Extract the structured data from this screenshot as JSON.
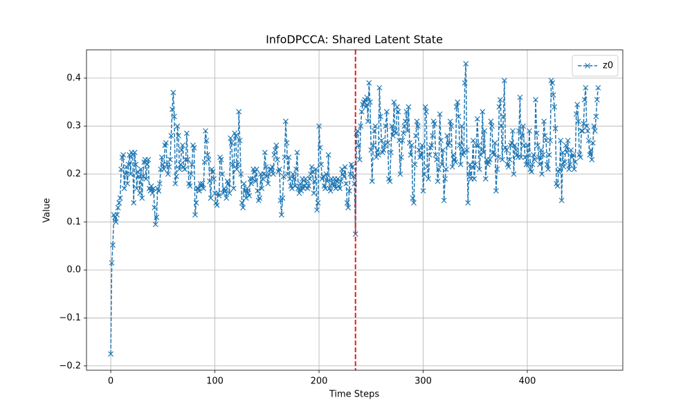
{
  "chart_data": {
    "type": "line",
    "title": "InfoDPCCA: Shared Latent State",
    "xlabel": "Time Steps",
    "ylabel": "Value",
    "x": [
      0,
      1,
      2,
      3,
      4,
      5,
      6,
      7,
      8,
      9,
      10,
      11,
      12,
      13,
      14,
      15,
      16,
      17,
      18,
      19,
      20,
      21,
      22,
      23,
      24,
      25,
      26,
      27,
      28,
      29,
      30,
      31,
      32,
      33,
      34,
      35,
      36,
      37,
      38,
      39,
      40,
      41,
      42,
      43,
      44,
      45,
      46,
      47,
      48,
      49,
      50,
      51,
      52,
      53,
      54,
      55,
      56,
      57,
      58,
      59,
      60,
      61,
      62,
      63,
      64,
      65,
      66,
      67,
      68,
      69,
      70,
      71,
      72,
      73,
      74,
      75,
      76,
      77,
      78,
      79,
      80,
      81,
      82,
      83,
      84,
      85,
      86,
      87,
      88,
      89,
      90,
      91,
      92,
      93,
      94,
      95,
      96,
      97,
      98,
      99,
      100,
      101,
      102,
      103,
      104,
      105,
      106,
      107,
      108,
      109,
      110,
      111,
      112,
      113,
      114,
      115,
      116,
      117,
      118,
      119,
      120,
      121,
      122,
      123,
      124,
      125,
      126,
      127,
      128,
      129,
      130,
      131,
      132,
      133,
      134,
      135,
      136,
      137,
      138,
      139,
      140,
      141,
      142,
      143,
      144,
      145,
      146,
      147,
      148,
      149,
      150,
      151,
      152,
      153,
      154,
      155,
      156,
      157,
      158,
      159,
      160,
      161,
      162,
      163,
      164,
      165,
      166,
      167,
      168,
      169,
      170,
      171,
      172,
      173,
      174,
      175,
      176,
      177,
      178,
      179,
      180,
      181,
      182,
      183,
      184,
      185,
      186,
      187,
      188,
      189,
      190,
      191,
      192,
      193,
      194,
      195,
      196,
      197,
      198,
      199,
      200,
      201,
      202,
      203,
      204,
      205,
      206,
      207,
      208,
      209,
      210,
      211,
      212,
      213,
      214,
      215,
      216,
      217,
      218,
      219,
      220,
      221,
      222,
      223,
      224,
      225,
      226,
      227,
      228,
      229,
      230,
      231,
      232,
      233,
      234,
      235,
      236,
      237,
      238,
      239,
      240,
      241,
      242,
      243,
      244,
      245,
      246,
      247,
      248,
      249,
      250,
      251,
      252,
      253,
      254,
      255,
      256,
      257,
      258,
      259,
      260,
      261,
      262,
      263,
      264,
      265,
      266,
      267,
      268,
      269,
      270,
      271,
      272,
      273,
      274,
      275,
      276,
      277,
      278,
      279,
      280,
      281,
      282,
      283,
      284,
      285,
      286,
      287,
      288,
      289,
      290,
      291,
      292,
      293,
      294,
      295,
      296,
      297,
      298,
      299,
      300,
      301,
      302,
      303,
      304,
      305,
      306,
      307,
      308,
      309,
      310,
      311,
      312,
      313,
      314,
      315,
      316,
      317,
      318,
      319,
      320,
      321,
      322,
      323,
      324,
      325,
      326,
      327,
      328,
      329,
      330,
      331,
      332,
      333,
      334,
      335,
      336,
      337,
      338,
      339,
      340,
      341,
      342,
      343,
      344,
      345,
      346,
      347,
      348,
      349,
      350,
      351,
      352,
      353,
      354,
      355,
      356,
      357,
      358,
      359,
      360,
      361,
      362,
      363,
      364,
      365,
      366,
      367,
      368,
      369,
      370,
      371,
      372,
      373,
      374,
      375,
      376,
      377,
      378,
      379,
      380,
      381,
      382,
      383,
      384,
      385,
      386,
      387,
      388,
      389,
      390,
      391,
      392,
      393,
      394,
      395,
      396,
      397,
      398,
      399,
      400,
      401,
      402,
      403,
      404,
      405,
      406,
      407,
      408,
      409,
      410,
      411,
      412,
      413,
      414,
      415,
      416,
      417,
      418,
      419,
      420,
      421,
      422,
      423,
      424,
      425,
      426,
      427,
      428,
      429,
      430,
      431,
      432,
      433,
      434,
      435,
      436,
      437,
      438,
      439,
      440,
      441,
      442,
      443,
      444,
      445,
      446,
      447,
      448,
      449,
      450,
      451,
      452,
      453,
      454,
      455,
      456,
      457,
      458,
      459,
      460,
      461,
      462,
      463,
      464,
      465,
      466,
      467,
      468
    ],
    "series": [
      {
        "name": "z0",
        "color": "#1f77b4",
        "values": [
          -0.175,
          0.015,
          0.052,
          0.115,
          0.11,
          0.1,
          0.115,
          0.13,
          0.14,
          0.15,
          0.21,
          0.235,
          0.24,
          0.17,
          0.2,
          0.215,
          0.18,
          0.22,
          0.24,
          0.2,
          0.245,
          0.24,
          0.14,
          0.245,
          0.22,
          0.17,
          0.205,
          0.195,
          0.16,
          0.21,
          0.15,
          0.195,
          0.225,
          0.23,
          0.19,
          0.22,
          0.23,
          0.17,
          0.165,
          0.175,
          0.16,
          0.17,
          0.13,
          0.095,
          0.11,
          0.17,
          0.165,
          0.18,
          0.21,
          0.235,
          0.22,
          0.21,
          0.26,
          0.265,
          0.22,
          0.2,
          0.215,
          0.23,
          0.28,
          0.335,
          0.37,
          0.32,
          0.18,
          0.195,
          0.3,
          0.28,
          0.21,
          0.22,
          0.25,
          0.26,
          0.215,
          0.21,
          0.23,
          0.285,
          0.23,
          0.18,
          0.175,
          0.2,
          0.22,
          0.26,
          0.255,
          0.115,
          0.14,
          0.17,
          0.17,
          0.165,
          0.18,
          0.175,
          0.18,
          0.17,
          0.225,
          0.29,
          0.27,
          0.24,
          0.23,
          0.185,
          0.15,
          0.21,
          0.205,
          0.19,
          0.16,
          0.14,
          0.135,
          0.16,
          0.155,
          0.235,
          0.23,
          0.2,
          0.16,
          0.17,
          0.165,
          0.15,
          0.185,
          0.18,
          0.16,
          0.275,
          0.265,
          0.22,
          0.17,
          0.285,
          0.28,
          0.21,
          0.22,
          0.33,
          0.27,
          0.2,
          0.14,
          0.13,
          0.18,
          0.165,
          0.15,
          0.17,
          0.16,
          0.155,
          0.19,
          0.18,
          0.19,
          0.21,
          0.205,
          0.185,
          0.21,
          0.165,
          0.145,
          0.15,
          0.2,
          0.17,
          0.19,
          0.2,
          0.245,
          0.215,
          0.195,
          0.18,
          0.2,
          0.21,
          0.21,
          0.215,
          0.2,
          0.24,
          0.25,
          0.26,
          0.23,
          0.205,
          0.21,
          0.145,
          0.115,
          0.15,
          0.195,
          0.235,
          0.31,
          0.265,
          0.2,
          0.235,
          0.19,
          0.175,
          0.17,
          0.2,
          0.19,
          0.175,
          0.21,
          0.245,
          0.17,
          0.16,
          0.18,
          0.165,
          0.19,
          0.17,
          0.175,
          0.19,
          0.18,
          0.17,
          0.175,
          0.19,
          0.2,
          0.215,
          0.205,
          0.16,
          0.185,
          0.21,
          0.125,
          0.14,
          0.3,
          0.255,
          0.22,
          0.19,
          0.195,
          0.175,
          0.17,
          0.2,
          0.185,
          0.24,
          0.17,
          0.165,
          0.19,
          0.18,
          0.175,
          0.19,
          0.17,
          0.185,
          0.19,
          0.175,
          0.17,
          0.185,
          0.21,
          0.2,
          0.195,
          0.215,
          0.18,
          0.14,
          0.13,
          0.165,
          0.2,
          0.22,
          0.215,
          0.195,
          0.18,
          0.075,
          0.285,
          0.29,
          0.26,
          0.23,
          0.3,
          0.33,
          0.345,
          0.35,
          0.355,
          0.34,
          0.36,
          0.31,
          0.39,
          0.35,
          0.25,
          0.185,
          0.26,
          0.29,
          0.3,
          0.235,
          0.25,
          0.24,
          0.38,
          0.32,
          0.27,
          0.245,
          0.25,
          0.26,
          0.3,
          0.33,
          0.265,
          0.19,
          0.185,
          0.245,
          0.3,
          0.28,
          0.35,
          0.29,
          0.285,
          0.34,
          0.33,
          0.27,
          0.2,
          0.235,
          0.27,
          0.285,
          0.3,
          0.31,
          0.33,
          0.29,
          0.34,
          0.265,
          0.24,
          0.26,
          0.15,
          0.14,
          0.22,
          0.28,
          0.31,
          0.3,
          0.25,
          0.235,
          0.24,
          0.26,
          0.165,
          0.2,
          0.34,
          0.33,
          0.215,
          0.19,
          0.24,
          0.255,
          0.26,
          0.28,
          0.31,
          0.305,
          0.24,
          0.23,
          0.185,
          0.21,
          0.325,
          0.27,
          0.22,
          0.25,
          0.145,
          0.19,
          0.21,
          0.28,
          0.26,
          0.265,
          0.31,
          0.3,
          0.215,
          0.24,
          0.23,
          0.225,
          0.34,
          0.35,
          0.32,
          0.26,
          0.22,
          0.3,
          0.24,
          0.245,
          0.39,
          0.43,
          0.25,
          0.14,
          0.2,
          0.22,
          0.19,
          0.215,
          0.27,
          0.19,
          0.22,
          0.26,
          0.315,
          0.26,
          0.21,
          0.24,
          0.25,
          0.33,
          0.245,
          0.29,
          0.19,
          0.23,
          0.22,
          0.225,
          0.23,
          0.31,
          0.3,
          0.245,
          0.24,
          0.265,
          0.165,
          0.21,
          0.235,
          0.34,
          0.355,
          0.3,
          0.23,
          0.32,
          0.395,
          0.255,
          0.25,
          0.22,
          0.215,
          0.23,
          0.26,
          0.265,
          0.29,
          0.2,
          0.26,
          0.25,
          0.24,
          0.235,
          0.29,
          0.36,
          0.235,
          0.28,
          0.3,
          0.26,
          0.235,
          0.22,
          0.26,
          0.22,
          0.29,
          0.21,
          0.205,
          0.22,
          0.24,
          0.23,
          0.355,
          0.285,
          0.26,
          0.235,
          0.22,
          0.25,
          0.2,
          0.24,
          0.31,
          0.28,
          0.27,
          0.22,
          0.21,
          0.24,
          0.27,
          0.395,
          0.39,
          0.365,
          0.34,
          0.295,
          0.18,
          0.175,
          0.205,
          0.21,
          0.27,
          0.145,
          0.245,
          0.215,
          0.225,
          0.26,
          0.245,
          0.27,
          0.21,
          0.22,
          0.25,
          0.235,
          0.24,
          0.21,
          0.225,
          0.325,
          0.345,
          0.31,
          0.24,
          0.235,
          0.29,
          0.29,
          0.305,
          0.355,
          0.38,
          0.3,
          0.29,
          0.27,
          0.24,
          0.25,
          0.23,
          0.265,
          0.3,
          0.29,
          0.32,
          0.355,
          0.38
        ]
      }
    ],
    "xlim": [
      -23.3,
      491.7
    ],
    "ylim": [
      -0.209,
      0.459
    ],
    "xticks": [
      0,
      100,
      200,
      300,
      400
    ],
    "yticks": [
      {
        "value": -0.2,
        "label": "−0.2"
      },
      {
        "value": -0.1,
        "label": "−0.1"
      },
      {
        "value": 0,
        "label": "0.0"
      },
      0.1,
      0.2,
      0.3,
      0.4
    ],
    "vlines": [
      {
        "x": 235,
        "color": "#e41a1c"
      }
    ],
    "grid": true,
    "legend": "upper right"
  }
}
